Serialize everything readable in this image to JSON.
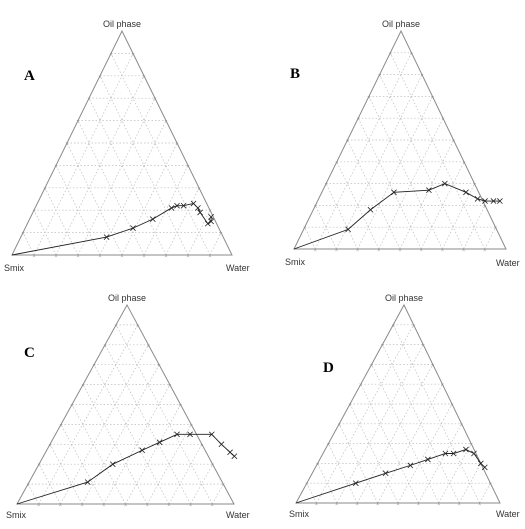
{
  "figure": {
    "panels": [
      {
        "label": "A",
        "top_label": "Oil phase",
        "left_label": "Smix",
        "right_label": "Water"
      },
      {
        "label": "B",
        "top_label": "Oil phase",
        "left_label": "Smix",
        "right_label": "Water"
      },
      {
        "label": "C",
        "top_label": "Oil phase",
        "left_label": "Smix",
        "right_label": "Water"
      },
      {
        "label": "D",
        "top_label": "Oil phase",
        "left_label": "Smix",
        "right_label": "Water"
      }
    ]
  },
  "chart_data": [
    {
      "type": "scatter",
      "chart_kind": "ternary",
      "panel": "A",
      "axes": {
        "top": "Oil phase",
        "left": "Smix",
        "right": "Water"
      },
      "grid": true,
      "grid_step": 0.1,
      "series": [
        {
          "points": [
            {
              "oil": 0.0,
              "water": 0.0
            },
            {
              "oil": 0.08,
              "water": 0.39
            },
            {
              "oil": 0.12,
              "water": 0.49
            },
            {
              "oil": 0.16,
              "water": 0.56
            },
            {
              "oil": 0.21,
              "water": 0.62
            },
            {
              "oil": 0.22,
              "water": 0.64
            },
            {
              "oil": 0.22,
              "water": 0.67
            },
            {
              "oil": 0.23,
              "water": 0.71
            },
            {
              "oil": 0.21,
              "water": 0.74
            },
            {
              "oil": 0.19,
              "water": 0.76
            },
            {
              "oil": 0.14,
              "water": 0.82
            },
            {
              "oil": 0.15,
              "water": 0.83
            },
            {
              "oil": 0.17,
              "water": 0.82
            }
          ]
        }
      ]
    },
    {
      "type": "scatter",
      "chart_kind": "ternary",
      "panel": "B",
      "axes": {
        "top": "Oil phase",
        "left": "Smix",
        "right": "Water"
      },
      "grid": true,
      "grid_step": 0.1,
      "series": [
        {
          "points": [
            {
              "oil": 0.0,
              "water": 0.0
            },
            {
              "oil": 0.09,
              "water": 0.21
            },
            {
              "oil": 0.18,
              "water": 0.27
            },
            {
              "oil": 0.26,
              "water": 0.34
            },
            {
              "oil": 0.27,
              "water": 0.5
            },
            {
              "oil": 0.3,
              "water": 0.56
            },
            {
              "oil": 0.26,
              "water": 0.68
            },
            {
              "oil": 0.23,
              "water": 0.75
            },
            {
              "oil": 0.22,
              "water": 0.79
            },
            {
              "oil": 0.22,
              "water": 0.83
            },
            {
              "oil": 0.22,
              "water": 0.86
            }
          ]
        }
      ]
    },
    {
      "type": "scatter",
      "chart_kind": "ternary",
      "panel": "C",
      "axes": {
        "top": "Oil phase",
        "left": "Smix",
        "right": "Water"
      },
      "grid": true,
      "grid_step": 0.1,
      "series": [
        {
          "points": [
            {
              "oil": 0.0,
              "water": 0.0
            },
            {
              "oil": 0.11,
              "water": 0.27
            },
            {
              "oil": 0.2,
              "water": 0.34
            },
            {
              "oil": 0.27,
              "water": 0.44
            },
            {
              "oil": 0.31,
              "water": 0.5
            },
            {
              "oil": 0.35,
              "water": 0.56
            },
            {
              "oil": 0.35,
              "water": 0.62
            },
            {
              "oil": 0.35,
              "water": 0.72
            },
            {
              "oil": 0.3,
              "water": 0.79
            },
            {
              "oil": 0.26,
              "water": 0.85
            },
            {
              "oil": 0.24,
              "water": 0.88
            }
          ]
        }
      ]
    },
    {
      "type": "scatter",
      "chart_kind": "ternary",
      "panel": "D",
      "axes": {
        "top": "Oil phase",
        "left": "Smix",
        "right": "Water"
      },
      "grid": true,
      "grid_step": 0.1,
      "series": [
        {
          "points": [
            {
              "oil": 0.0,
              "water": 0.0
            },
            {
              "oil": 0.1,
              "water": 0.24
            },
            {
              "oil": 0.15,
              "water": 0.36
            },
            {
              "oil": 0.19,
              "water": 0.46
            },
            {
              "oil": 0.22,
              "water": 0.53
            },
            {
              "oil": 0.25,
              "water": 0.6
            },
            {
              "oil": 0.25,
              "water": 0.64
            },
            {
              "oil": 0.27,
              "water": 0.69
            },
            {
              "oil": 0.25,
              "water": 0.74
            },
            {
              "oil": 0.2,
              "water": 0.8
            },
            {
              "oil": 0.18,
              "water": 0.83
            }
          ]
        }
      ]
    }
  ]
}
